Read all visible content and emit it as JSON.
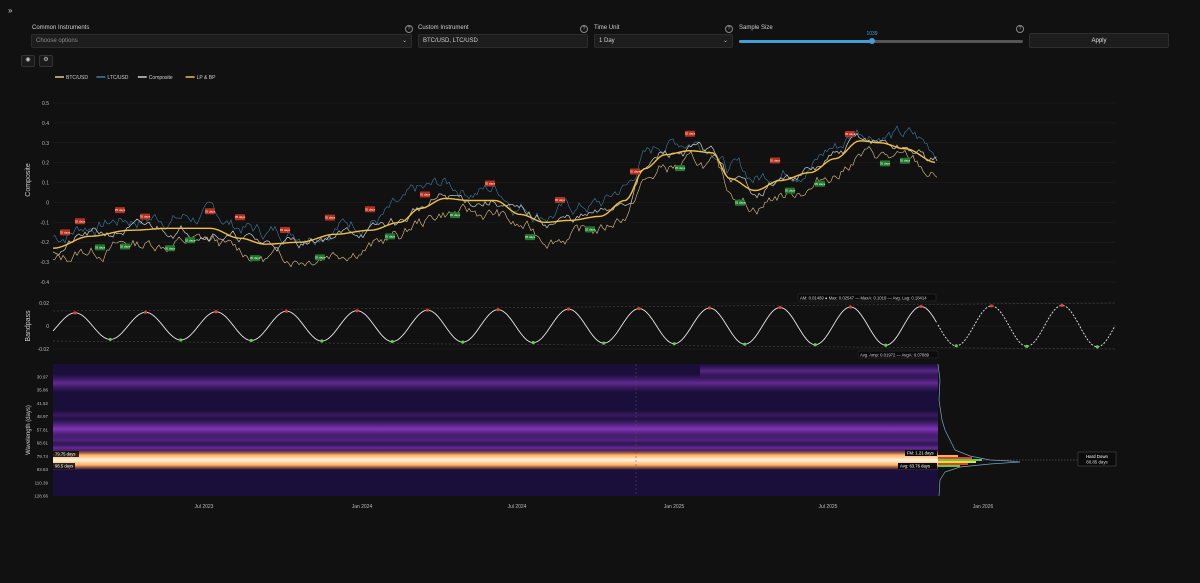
{
  "toolbar": {
    "collapse_icon": "double-chevron-right-icon",
    "common_instruments": {
      "label": "Common Instruments",
      "placeholder": "Choose options"
    },
    "custom_instrument": {
      "label": "Custom Instrument",
      "value": "BTC/USD, LTC/USD"
    },
    "time_unit": {
      "label": "Time Unit",
      "value": "1 Day"
    },
    "sample_size": {
      "label": "Sample Size",
      "value": 1039,
      "fraction": 0.47
    },
    "apply_label": "Apply"
  },
  "tools": {
    "screenshot_icon": "camera-icon",
    "settings_icon": "gear-icon"
  },
  "legend": [
    {
      "name": "BTC/USD",
      "color": "#e8c58a"
    },
    {
      "name": "LTC/USD",
      "color": "#3d7da3"
    },
    {
      "name": "Composite",
      "color": "#d0d0d0"
    },
    {
      "name": "LP & BP",
      "color": "#f0c040"
    }
  ],
  "composite": {
    "ylabel": "Composite",
    "yticks": [
      "0.5",
      "0.4",
      "0.3",
      "0.2",
      "0.1",
      "0",
      "-0.1",
      "-0.2",
      "-0.3",
      "-0.4"
    ],
    "red_markers": [
      "35 days",
      "35 days",
      "35 days",
      "35 days",
      "35 days",
      "35 days",
      "35 days",
      "35 days",
      "35 days",
      "35 days",
      "35 days",
      "35 days",
      "35 days",
      "35 days",
      "35 days",
      "35 days"
    ],
    "green_markers": [
      "35 days",
      "35 days",
      "35 days",
      "35 days",
      "35 days",
      "35 days",
      "35 days",
      "35 days",
      "35 days",
      "35 days",
      "35 days",
      "35 days",
      "35 days",
      "35 days",
      "35 days",
      "35 days"
    ]
  },
  "bandpass": {
    "ylabel": "Bandpass",
    "yticks": [
      "0.02",
      "0",
      "-0.02"
    ],
    "stats_top": "AM: 0.01469 ● Max: 0.02547 — MaxA: 0.1019 — Avg. Lag: 0.18414",
    "stats_bottom": "Avg. Amp: 0.01972 — AvgA: 0.07889"
  },
  "wavelength": {
    "ylabel": "Wavelength (days)",
    "yticks": [
      "30.97",
      "35.86",
      "41.52",
      "48.97",
      "57.81",
      "68.61",
      "79.74",
      "93.63",
      "110.39",
      "128.66"
    ],
    "left_label_1": "79.75 days",
    "left_label_2": "96.5 days",
    "fm_label": "FM: 1.21 days",
    "avg_label": "Avg: 63.76 days",
    "hard_down_title": "Hard Down",
    "hard_down_value": "80.85 days"
  },
  "xaxis": [
    "Jul 2023",
    "Jan 2024",
    "Jul 2024",
    "Jan 2025",
    "Jul 2025",
    "Jan 2026"
  ]
}
